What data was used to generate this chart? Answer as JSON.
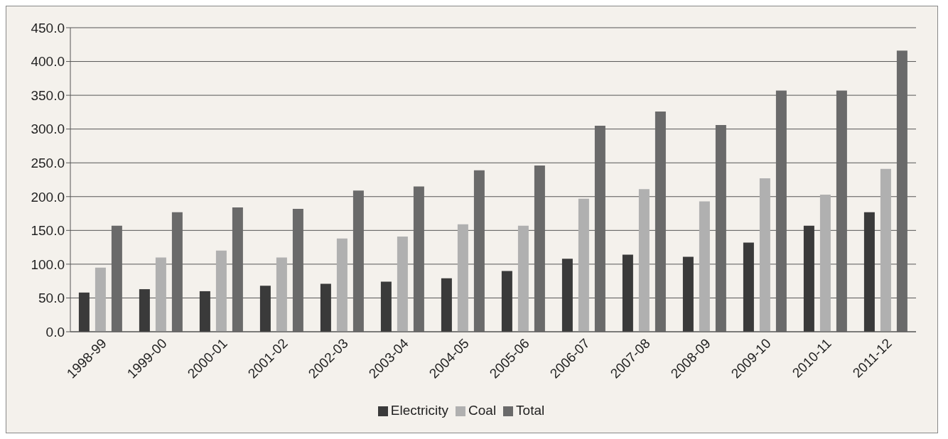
{
  "chart_data": {
    "type": "bar",
    "categories": [
      "1998-99",
      "1999-00",
      "2000-01",
      "2001-02",
      "2002-03",
      "2003-04",
      "2004-05",
      "2005-06",
      "2006-07",
      "2007-08",
      "2008-09",
      "2009-10",
      "2010-11",
      "2011-12"
    ],
    "series": [
      {
        "name": "Electricity",
        "color": "#3a3a3a",
        "values": [
          58,
          63,
          60,
          68,
          71,
          74,
          79,
          90,
          108,
          114,
          111,
          132,
          157,
          177
        ]
      },
      {
        "name": "Coal",
        "color": "#b0b0b0",
        "values": [
          95,
          110,
          120,
          110,
          138,
          141,
          159,
          157,
          197,
          211,
          193,
          227,
          203,
          241
        ]
      },
      {
        "name": "Total",
        "color": "#6a6a6a",
        "values": [
          157,
          177,
          184,
          182,
          209,
          215,
          239,
          246,
          305,
          326,
          306,
          357,
          357,
          416
        ]
      }
    ],
    "ylim": [
      0,
      450
    ],
    "yticks": [
      {
        "value": 0,
        "label": "0.0"
      },
      {
        "value": 50,
        "label": "50.0"
      },
      {
        "value": 100,
        "label": "100.0"
      },
      {
        "value": 150,
        "label": "150.0"
      },
      {
        "value": 200,
        "label": "200.0"
      },
      {
        "value": 250,
        "label": "250.0"
      },
      {
        "value": 300,
        "label": "300.0"
      },
      {
        "value": 350,
        "label": "350.0"
      },
      {
        "value": 400,
        "label": "400.0"
      },
      {
        "value": 450,
        "label": "450.0"
      }
    ],
    "grid": "y",
    "legend": "bottom"
  }
}
